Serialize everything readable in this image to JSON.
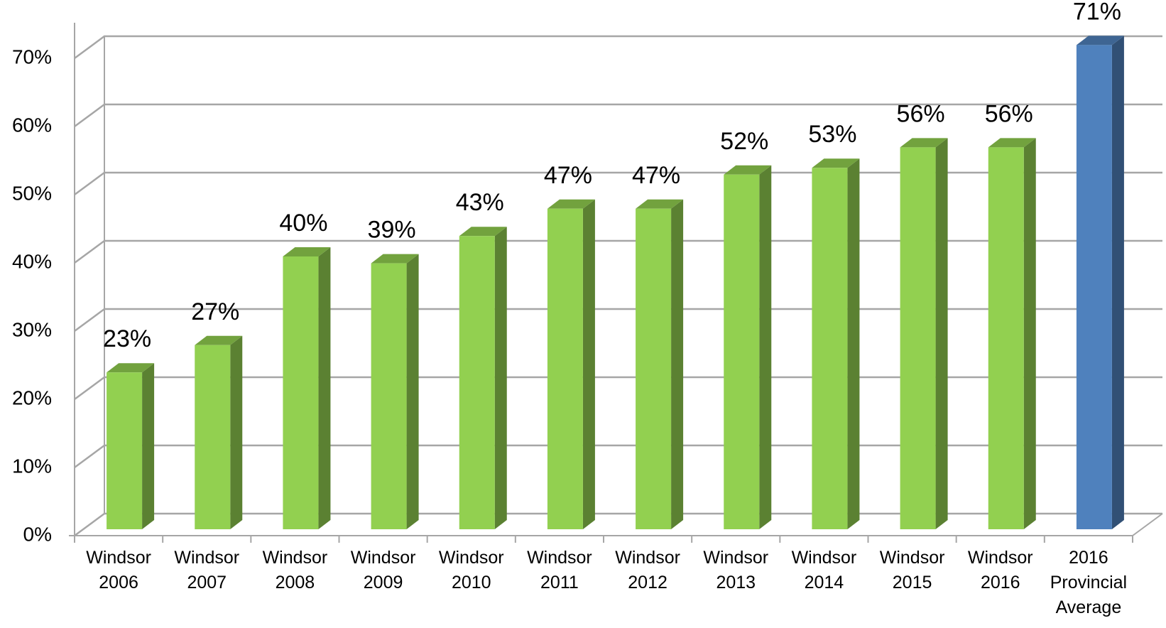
{
  "chart_data": {
    "type": "bar3d",
    "categories": [
      "Windsor 2006",
      "Windsor 2007",
      "Windsor 2008",
      "Windsor 2009",
      "Windsor 2010",
      "Windsor 2011",
      "Windsor 2012",
      "Windsor 2013",
      "Windsor 2014",
      "Windsor 2015",
      "Windsor 2016",
      "2016 Provincial Average"
    ],
    "values": [
      23,
      27,
      40,
      39,
      43,
      47,
      47,
      52,
      53,
      56,
      56,
      71
    ],
    "value_labels": [
      "23%",
      "27%",
      "40%",
      "39%",
      "43%",
      "47%",
      "47%",
      "52%",
      "53%",
      "56%",
      "56%",
      "71%"
    ],
    "colors": [
      "#92d050",
      "#92d050",
      "#92d050",
      "#92d050",
      "#92d050",
      "#92d050",
      "#92d050",
      "#92d050",
      "#92d050",
      "#92d050",
      "#92d050",
      "#4f81bd"
    ],
    "ylim": [
      0,
      70
    ],
    "yticks": [
      {
        "value": 0,
        "label": "0%"
      },
      {
        "value": 10,
        "label": "10%"
      },
      {
        "value": 20,
        "label": "20%"
      },
      {
        "value": 30,
        "label": "30%"
      },
      {
        "value": 40,
        "label": "40%"
      },
      {
        "value": 50,
        "label": "50%"
      },
      {
        "value": 60,
        "label": "60%"
      },
      {
        "value": 70,
        "label": "70%"
      }
    ],
    "grid": true
  }
}
